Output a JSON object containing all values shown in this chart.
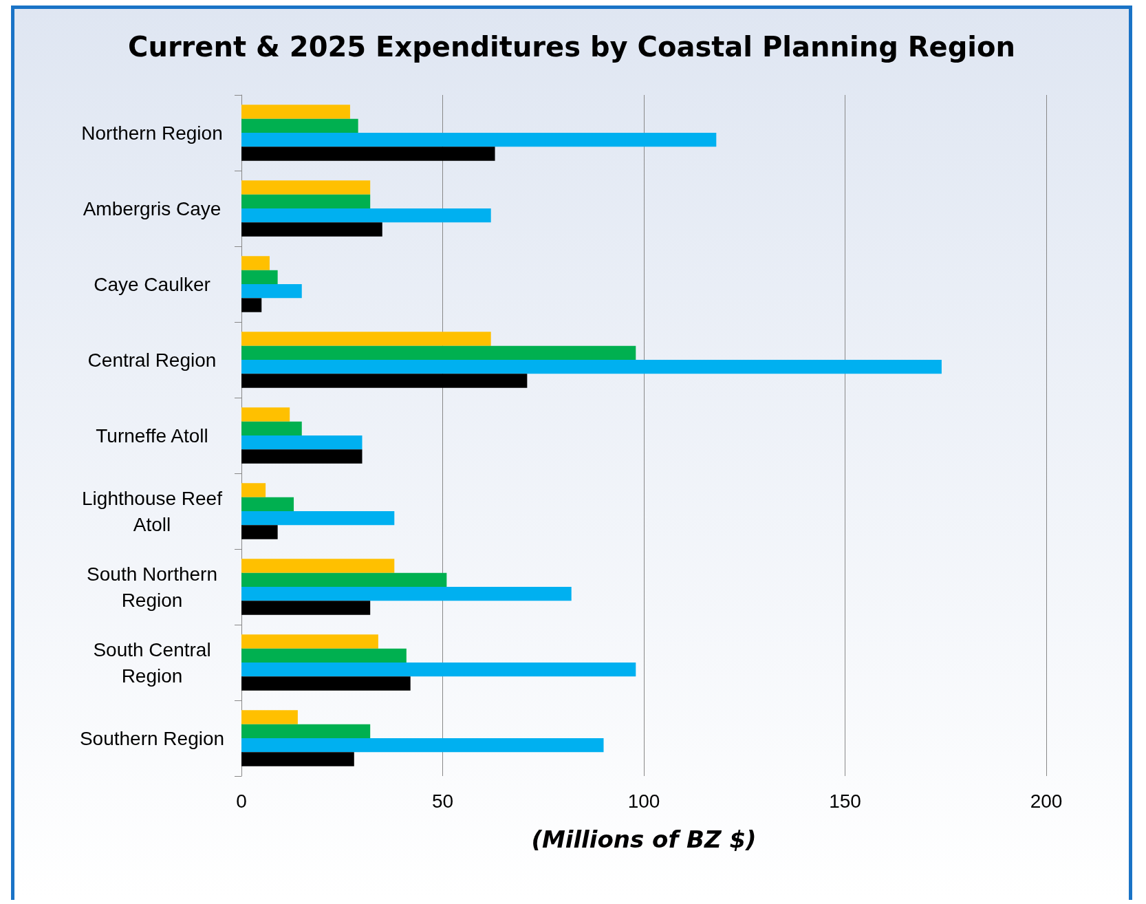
{
  "chart_data": {
    "type": "bar",
    "orientation": "horizontal",
    "title": "Current & 2025 Expenditures by Coastal Planning Region",
    "xlabel": "(Millions of BZ $)",
    "categories": [
      "Northern Region",
      "Ambergris Caye",
      "Caye Caulker",
      "Central Region",
      "Turneffe Atoll",
      "Lighthouse Reef\nAtoll",
      "South Northern\nRegion",
      "South Central\nRegion",
      "Southern Region"
    ],
    "series": [
      {
        "color": "#ffc000",
        "values": [
          27,
          32,
          7,
          62,
          12,
          6,
          38,
          34,
          14
        ]
      },
      {
        "color": "#00b050",
        "values": [
          29,
          32,
          9,
          98,
          15,
          13,
          51,
          41,
          32
        ]
      },
      {
        "color": "#00b0f0",
        "values": [
          118,
          62,
          15,
          174,
          30,
          38,
          82,
          98,
          90
        ]
      },
      {
        "color": "#000000",
        "values": [
          63,
          35,
          5,
          71,
          30,
          9,
          32,
          42,
          28
        ]
      }
    ],
    "xlim": [
      0,
      200
    ],
    "xticks": [
      0,
      50,
      100,
      150,
      200
    ],
    "grid": "x"
  }
}
